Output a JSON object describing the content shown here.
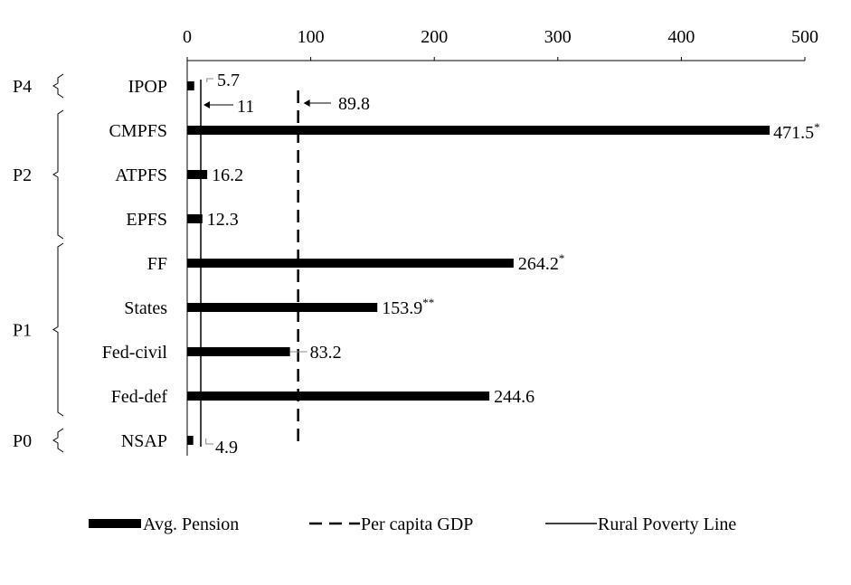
{
  "chart_data": {
    "type": "bar",
    "orientation": "horizontal",
    "xlim": [
      0,
      500
    ],
    "x_ticks": [
      "0",
      "100",
      "200",
      "300",
      "400",
      "500"
    ],
    "x_axis_position": "top",
    "grid": false,
    "categories": [
      "IPOP",
      "CMPFS",
      "ATPFS",
      "EPFS",
      "FF",
      "States",
      "Fed-civil",
      "Fed-def",
      "NSAP"
    ],
    "series": [
      {
        "name": "Avg. Pension",
        "values": [
          5.7,
          471.5,
          16.2,
          12.3,
          264.2,
          153.9,
          83.2,
          244.6,
          4.9
        ],
        "labels": [
          "5.7",
          "471.5",
          "16.2",
          "12.3",
          "264.2",
          "153.9",
          "83.2",
          "244.6",
          "4.9"
        ],
        "label_superscripts": [
          "",
          "*",
          "",
          "",
          "*",
          "**",
          "",
          "",
          ""
        ],
        "color": "#000000"
      }
    ],
    "reference_lines": [
      {
        "name": "Per capita GDP",
        "value": 89.8,
        "label": "89.8",
        "style": "dashed"
      },
      {
        "name": "Rural Poverty Line",
        "value": 11,
        "label": "11",
        "style": "solid"
      }
    ],
    "groups": [
      {
        "label": "P4",
        "categories": [
          "IPOP"
        ]
      },
      {
        "label": "P2",
        "categories": [
          "CMPFS",
          "ATPFS",
          "EPFS"
        ]
      },
      {
        "label": "P1",
        "categories": [
          "FF",
          "States",
          "Fed-civil",
          "Fed-def"
        ]
      },
      {
        "label": "P0",
        "categories": [
          "NSAP"
        ]
      }
    ],
    "legend": {
      "placement": "bottom",
      "items": [
        "Avg. Pension",
        "Per capita GDP",
        "Rural Poverty Line"
      ]
    }
  }
}
